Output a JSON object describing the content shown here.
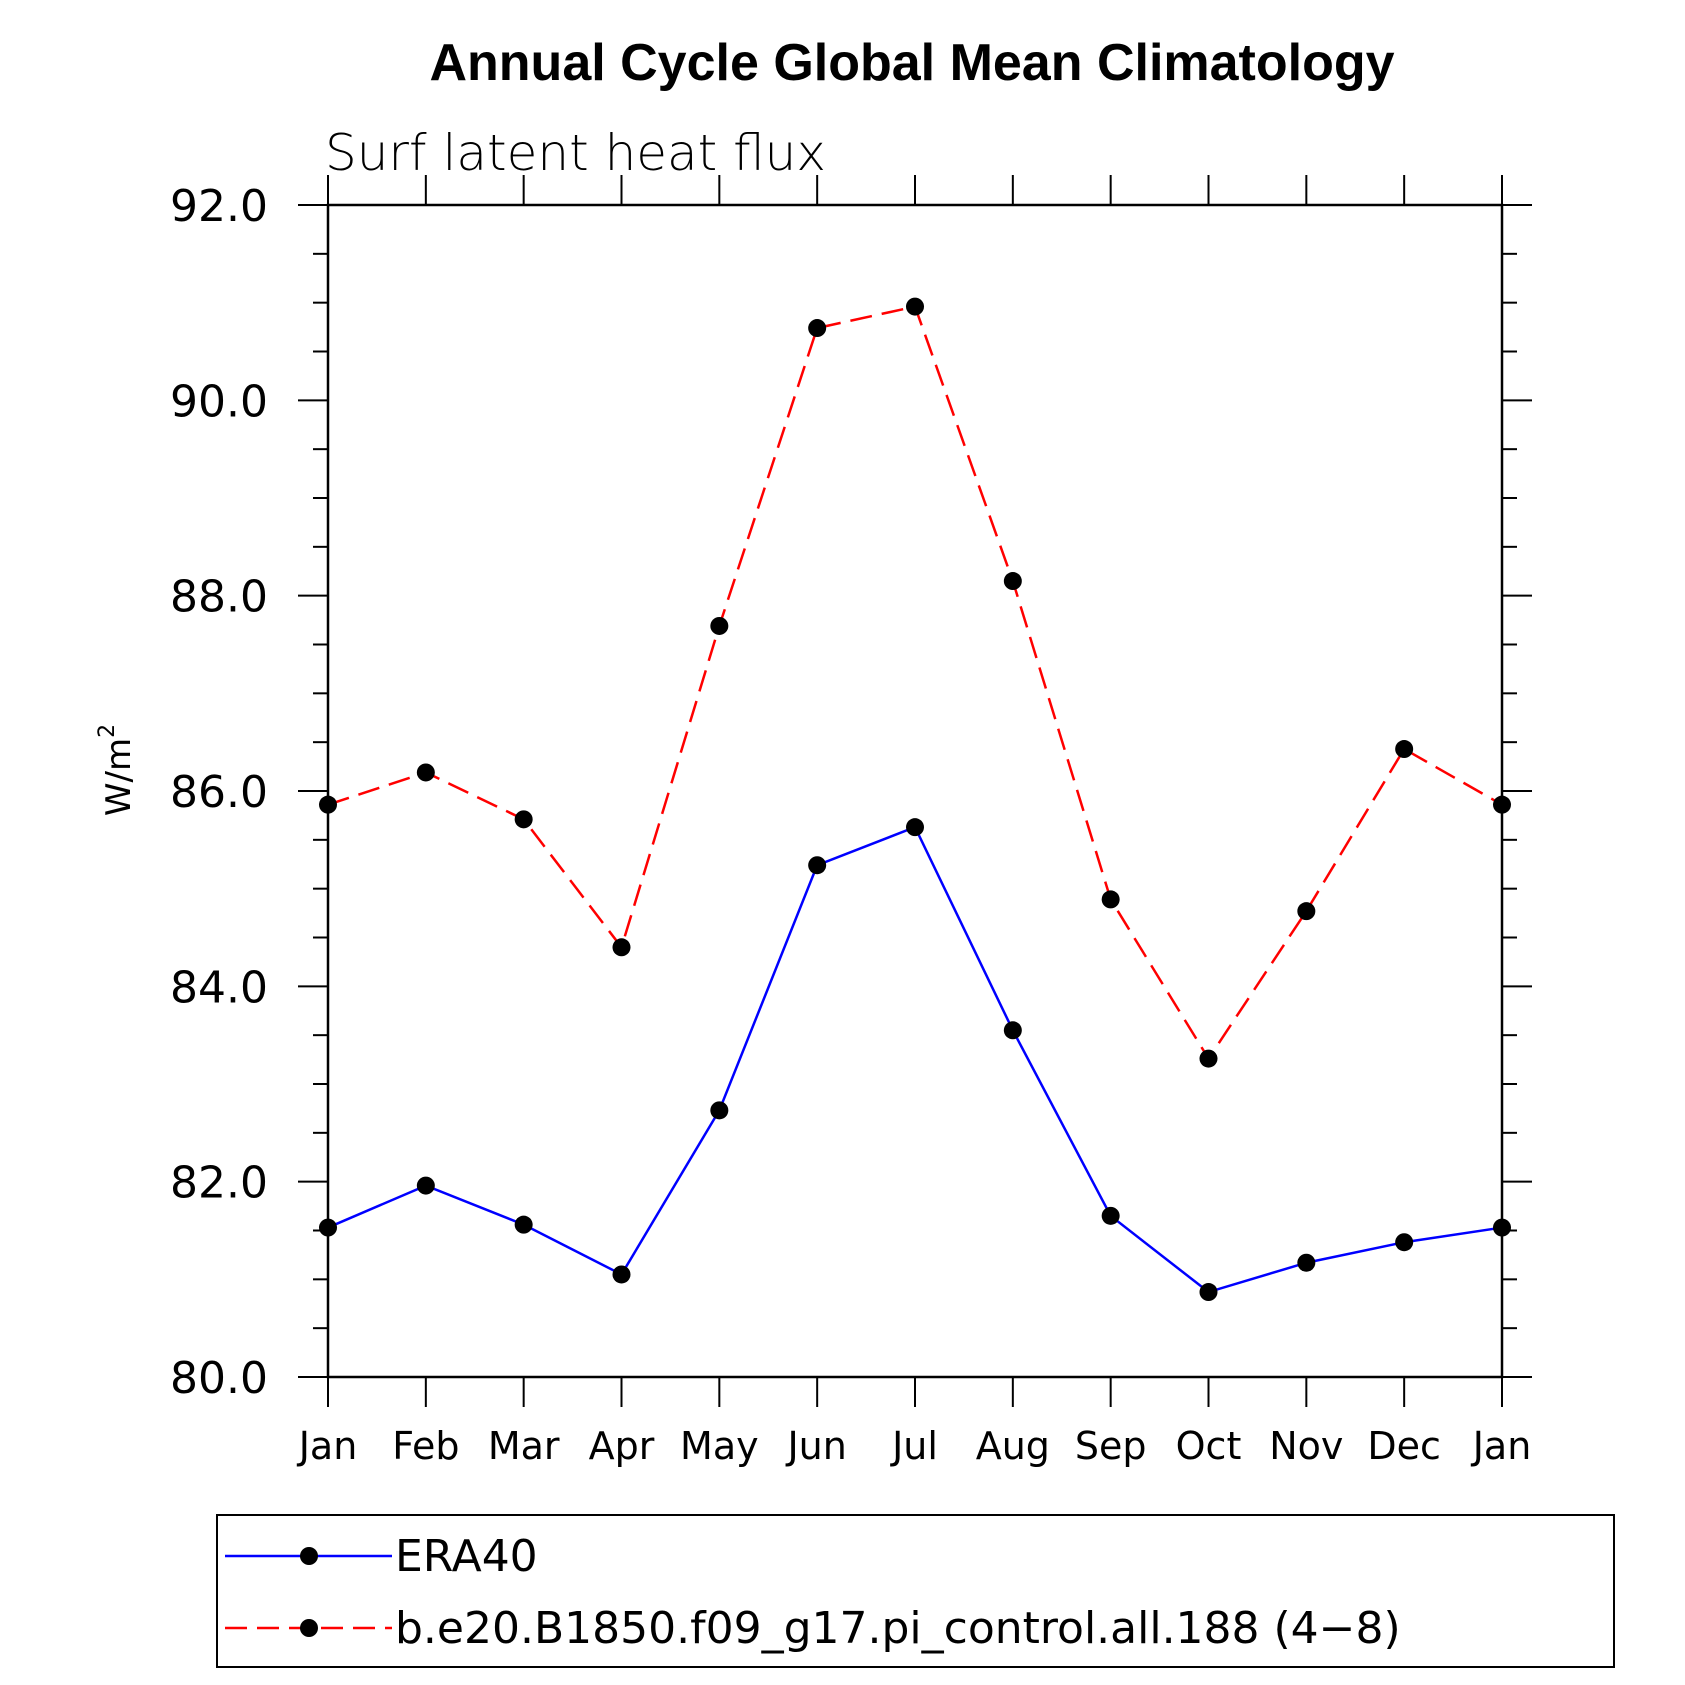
{
  "chart_data": {
    "type": "line",
    "title": "Annual Cycle Global Mean Climatology",
    "subtitle": "Surf latent heat flux",
    "xlabel": "",
    "ylabel": "W/m",
    "ylabel_superscript": "2",
    "categories": [
      "Jan",
      "Feb",
      "Mar",
      "Apr",
      "May",
      "Jun",
      "Jul",
      "Aug",
      "Sep",
      "Oct",
      "Nov",
      "Dec",
      "Jan"
    ],
    "ylim": [
      80.0,
      92.0
    ],
    "yticks": [
      "80.0",
      "82.0",
      "84.0",
      "86.0",
      "88.0",
      "90.0",
      "92.0"
    ],
    "series": [
      {
        "name": "ERA40",
        "color": "#0000ff",
        "dash": "solid",
        "marker": "filled-circle",
        "values": [
          81.53,
          81.96,
          81.56,
          81.05,
          82.73,
          85.24,
          85.63,
          83.55,
          81.65,
          80.87,
          81.17,
          81.38,
          81.53
        ]
      },
      {
        "name": "b.e20.B1850.f09_g17.pi_control.all.188 (4−8)",
        "color": "#ff0000",
        "dash": "dashed",
        "marker": "filled-circle",
        "values": [
          85.86,
          86.19,
          85.71,
          84.4,
          87.69,
          90.74,
          90.96,
          88.15,
          84.89,
          83.26,
          84.77,
          86.43,
          85.86
        ]
      }
    ],
    "grid": false,
    "legend": "bottom"
  }
}
